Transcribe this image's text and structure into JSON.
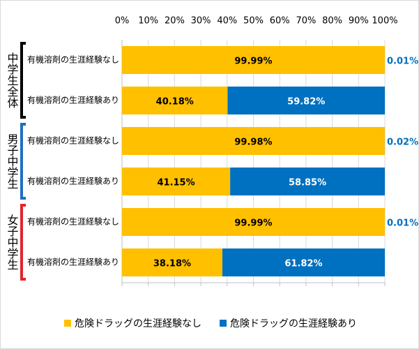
{
  "chart_data": {
    "type": "stacked-bar-horizontal",
    "categories": [
      "有機溶剤の生涯経験なし",
      "有機溶剤の生涯経験あり",
      "有機溶剤の生涯経験なし",
      "有機溶剤の生涯経験あり",
      "有機溶剤の生涯経験なし",
      "有機溶剤の生涯経験あり"
    ],
    "groups": [
      {
        "name": "中学生全体",
        "color": "#000000"
      },
      {
        "name": "男子中学生",
        "color": "#1f6fbf"
      },
      {
        "name": "女子中学生",
        "color": "#e0262b"
      }
    ],
    "series": [
      {
        "name": "危険ドラッグの生涯経験なし",
        "color": "#ffc000",
        "values": [
          99.99,
          40.18,
          99.98,
          41.15,
          99.99,
          38.18
        ],
        "value_labels": [
          "99.99%",
          "40.18%",
          "99.98%",
          "41.15%",
          "99.99%",
          "38.18%"
        ]
      },
      {
        "name": "危険ドラッグの生涯経験あり",
        "color": "#0070c0",
        "values": [
          0.01,
          59.82,
          0.02,
          58.85,
          0.01,
          61.82
        ],
        "value_labels": [
          "0.01%",
          "59.82%",
          "0.02%",
          "58.85%",
          "0.01%",
          "61.82%"
        ]
      }
    ],
    "xlim": [
      0,
      100
    ],
    "xticks": [
      {
        "value": 0,
        "label": "0%"
      },
      {
        "value": 10,
        "label": "10%"
      },
      {
        "value": 20,
        "label": "20%"
      },
      {
        "value": 30,
        "label": "30%"
      },
      {
        "value": 40,
        "label": "40%"
      },
      {
        "value": 50,
        "label": "50%"
      },
      {
        "value": 60,
        "label": "60%"
      },
      {
        "value": 70,
        "label": "70%"
      },
      {
        "value": 80,
        "label": "80%"
      },
      {
        "value": 90,
        "label": "90%"
      },
      {
        "value": 100,
        "label": "100%"
      }
    ],
    "grid": true,
    "legend": "bottom"
  }
}
